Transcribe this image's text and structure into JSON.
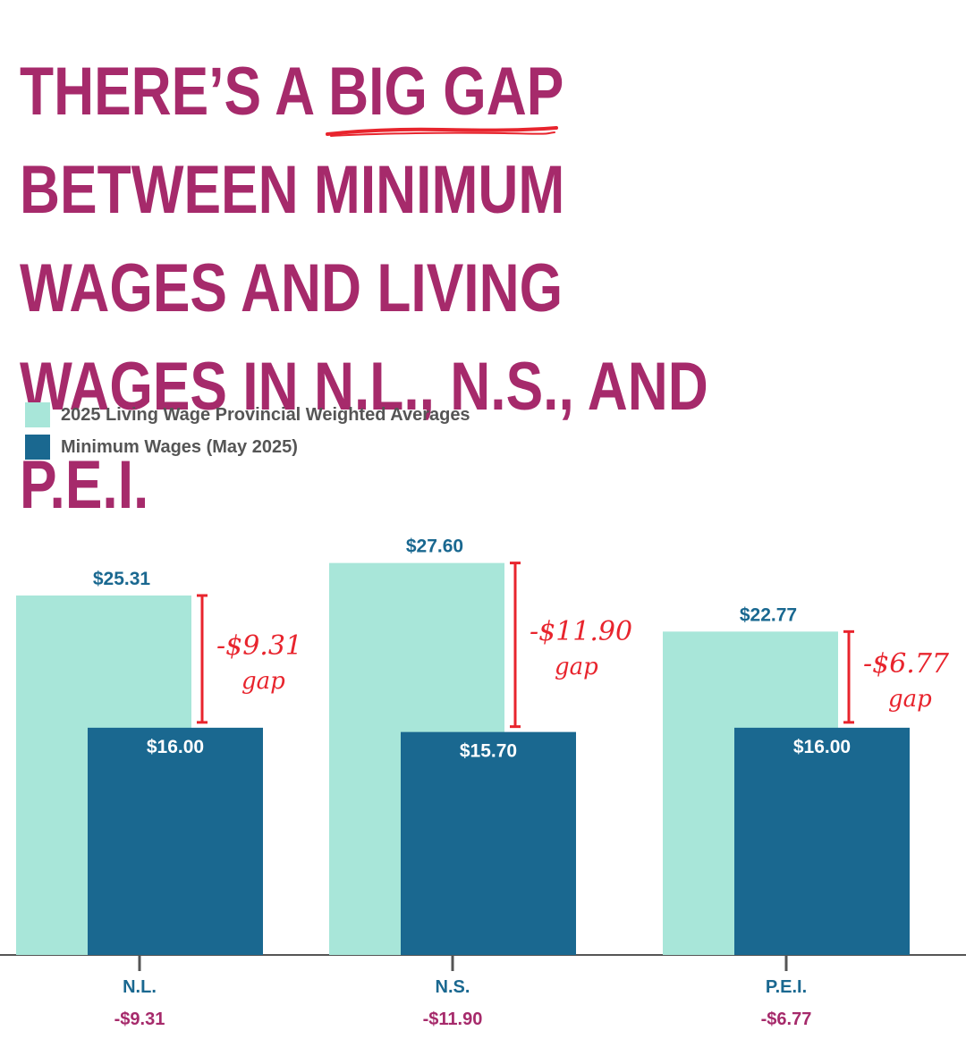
{
  "title": {
    "before": "THERE’S A ",
    "highlight": "BIG GAP",
    "after": " BETWEEN MINIMUM WAGES AND LIVING WAGES IN N.L., N.S., AND P.E.I."
  },
  "colors": {
    "title": "#a62a6b",
    "living_wage": "#a8e6d9",
    "minimum_wage": "#1a6890",
    "gap_annotation": "#e8242d",
    "category_label": "#1a6890",
    "gap_label": "#a62a6b"
  },
  "chart_data": {
    "type": "bar",
    "categories": [
      "N.L.",
      "N.S.",
      "P.E.I."
    ],
    "series": [
      {
        "name": "2025 Living Wage Provincial Weighted Averages",
        "values": [
          25.31,
          27.6,
          22.77
        ],
        "labels": [
          "$25.31",
          "$27.60",
          "$22.77"
        ]
      },
      {
        "name": "Minimum Wages (May 2025)",
        "values": [
          16.0,
          15.7,
          16.0
        ],
        "labels": [
          "$16.00",
          "$15.70",
          "$16.00"
        ]
      }
    ],
    "gap_annotations": [
      "-$9.31",
      "-$11.90",
      "-$6.77"
    ],
    "gap_word": "gap",
    "category_gaps": [
      "-$9.31",
      "-$11.90",
      "-$6.77"
    ],
    "ylim": [
      0,
      30
    ],
    "grid": false,
    "legend_position": "top-left"
  }
}
